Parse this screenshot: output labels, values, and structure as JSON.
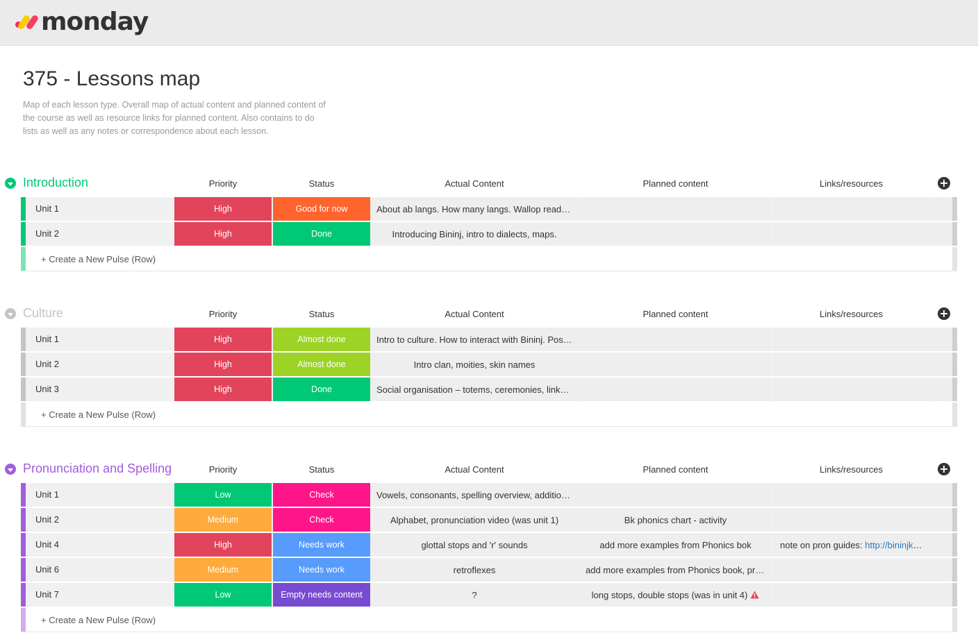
{
  "app": {
    "logo_text": "monday"
  },
  "board": {
    "title": "375 - Lessons map",
    "description": "Map of each lesson type. Overall map of actual content and planned content of the course as well as resource links for planned content. Also contains to do lists as well as any notes or correspondence about each lesson."
  },
  "columns": {
    "priority": "Priority",
    "status": "Status",
    "actual": "Actual Content",
    "planned": "Planned content",
    "links": "Links/resources"
  },
  "colors": {
    "green_group": "#00c875",
    "grey_group": "#c4c4c4",
    "purple_group": "#a25ddc",
    "high": "#e2445c",
    "medium": "#fdab3d",
    "low": "#00c875",
    "good_for_now": "#ff642e",
    "done": "#00c875",
    "almost_done": "#9cd326",
    "check": "#ff158a",
    "needs_work": "#579bfc",
    "empty_needs_content": "#784bd1",
    "warning": "#e2445c"
  },
  "new_row_label": "+ Create a New Pulse (Row)",
  "groups": [
    {
      "title": "Introduction",
      "rows": [
        {
          "name": "Unit 1",
          "priority": "High",
          "status": "Good for now",
          "actual": "About ab langs. How many langs. Wallop reading.",
          "planned": "",
          "links": ""
        },
        {
          "name": "Unit 2",
          "priority": "High",
          "status": "Done",
          "actual": "Introducing Bininj, intro to dialects, maps.",
          "planned": "",
          "links": ""
        }
      ]
    },
    {
      "title": "Culture",
      "rows": [
        {
          "name": "Unit 1",
          "priority": "High",
          "status": "Almost done",
          "actual": "Intro to culture. How to interact with Bininj. Post…",
          "planned": "",
          "links": ""
        },
        {
          "name": "Unit 2",
          "priority": "High",
          "status": "Almost done",
          "actual": "Intro clan, moities, skin names",
          "planned": "",
          "links": ""
        },
        {
          "name": "Unit 3",
          "priority": "High",
          "status": "Done",
          "actual": "Social organisation – totems, ceremonies, links t…",
          "planned": "",
          "links": ""
        }
      ]
    },
    {
      "title": "Pronunciation and Spelling",
      "rows": [
        {
          "name": "Unit 1",
          "priority": "Low",
          "status": "Check",
          "actual": "Vowels, consonants, spelling overview, additiona…",
          "planned": "",
          "links": ""
        },
        {
          "name": "Unit 2",
          "priority": "Medium",
          "status": "Check",
          "actual": "Alphabet, pronunciation video (was unit 1)",
          "planned": "Bk phonics chart - activity",
          "links": ""
        },
        {
          "name": "Unit 4",
          "priority": "High",
          "status": "Needs work",
          "actual": "glottal stops and 'r' sounds",
          "planned": "add more examples from Phonics bok",
          "links": "note on pron guides: ",
          "links_url": "http://bininjku…"
        },
        {
          "name": "Unit 6",
          "priority": "Medium",
          "status": "Needs work",
          "actual": "retroflexes",
          "planned": "add more examples from Phonics book, pra…",
          "links": ""
        },
        {
          "name": "Unit 7",
          "priority": "Low",
          "status": "Empty needs content",
          "actual": "?",
          "planned": "long stops, double stops (was in unit 4)",
          "links": ""
        }
      ]
    }
  ]
}
